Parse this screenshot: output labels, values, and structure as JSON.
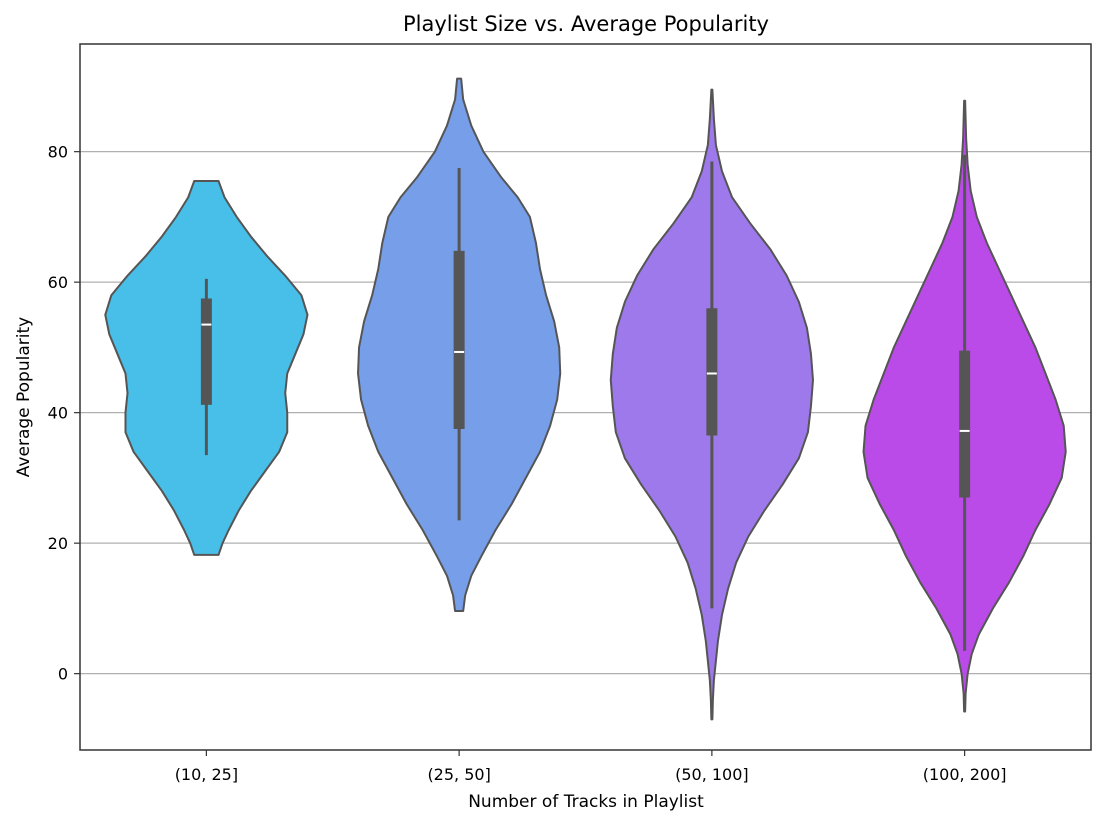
{
  "chart_data": {
    "type": "violin",
    "title": "Playlist Size vs. Average Popularity",
    "xlabel": "Number of Tracks in Playlist",
    "ylabel": "Average Popularity",
    "ylim": [
      -11.7,
      96.5
    ],
    "yticks": [
      0,
      20,
      40,
      60,
      80
    ],
    "grid": "y",
    "categories": [
      "(10, 25]",
      "(25, 50]",
      "(50, 100]",
      "(100, 200]"
    ],
    "colors": [
      "#48bfe8",
      "#779ee9",
      "#9e79eb",
      "#bb4be8"
    ],
    "outline_color": "#555555",
    "grid_color": "#b0b0b0",
    "violins": [
      {
        "category": "(10, 25]",
        "extent": [
          18.2,
          75.5
        ],
        "profile": [
          [
            18.2,
            0.12
          ],
          [
            20,
            0.16
          ],
          [
            22,
            0.22
          ],
          [
            25,
            0.32
          ],
          [
            28,
            0.44
          ],
          [
            31,
            0.58
          ],
          [
            34,
            0.72
          ],
          [
            37,
            0.8
          ],
          [
            40,
            0.8
          ],
          [
            43,
            0.78
          ],
          [
            46,
            0.8
          ],
          [
            49,
            0.88
          ],
          [
            52,
            0.96
          ],
          [
            55,
            1.0
          ],
          [
            58,
            0.94
          ],
          [
            61,
            0.78
          ],
          [
            64,
            0.6
          ],
          [
            67,
            0.44
          ],
          [
            70,
            0.3
          ],
          [
            73,
            0.18
          ],
          [
            75.5,
            0.12
          ]
        ],
        "box": {
          "q1": 41.2,
          "median": 53.5,
          "q3": 57.5,
          "whisker_low": 33.5,
          "whisker_high": 60.5
        }
      },
      {
        "category": "(25, 50]",
        "extent": [
          9.6,
          91.2
        ],
        "profile": [
          [
            9.6,
            0.04
          ],
          [
            12,
            0.06
          ],
          [
            15,
            0.12
          ],
          [
            18,
            0.22
          ],
          [
            22,
            0.36
          ],
          [
            26,
            0.52
          ],
          [
            30,
            0.66
          ],
          [
            34,
            0.8
          ],
          [
            38,
            0.9
          ],
          [
            42,
            0.97
          ],
          [
            46,
            1.0
          ],
          [
            50,
            0.99
          ],
          [
            54,
            0.94
          ],
          [
            58,
            0.86
          ],
          [
            62,
            0.8
          ],
          [
            66,
            0.76
          ],
          [
            70,
            0.7
          ],
          [
            73,
            0.58
          ],
          [
            76,
            0.42
          ],
          [
            80,
            0.24
          ],
          [
            84,
            0.12
          ],
          [
            88,
            0.04
          ],
          [
            91.2,
            0.02
          ]
        ],
        "box": {
          "q1": 37.5,
          "median": 49.3,
          "q3": 64.8,
          "whisker_low": 23.5,
          "whisker_high": 77.5
        }
      },
      {
        "category": "(50, 100]",
        "extent": [
          -7,
          89.5
        ],
        "profile": [
          [
            -7,
            0.005
          ],
          [
            -4,
            0.01
          ],
          [
            -1,
            0.02
          ],
          [
            2,
            0.04
          ],
          [
            5,
            0.06
          ],
          [
            9,
            0.1
          ],
          [
            13,
            0.16
          ],
          [
            17,
            0.24
          ],
          [
            21,
            0.36
          ],
          [
            25,
            0.52
          ],
          [
            29,
            0.7
          ],
          [
            33,
            0.86
          ],
          [
            37,
            0.95
          ],
          [
            41,
            0.98
          ],
          [
            45,
            1.0
          ],
          [
            49,
            0.98
          ],
          [
            53,
            0.94
          ],
          [
            57,
            0.86
          ],
          [
            61,
            0.74
          ],
          [
            65,
            0.58
          ],
          [
            69,
            0.38
          ],
          [
            73,
            0.2
          ],
          [
            77,
            0.1
          ],
          [
            81,
            0.04
          ],
          [
            85,
            0.02
          ],
          [
            89.5,
            0.005
          ]
        ],
        "box": {
          "q1": 36.5,
          "median": 46.0,
          "q3": 56.0,
          "whisker_low": 10.0,
          "whisker_high": 78.5
        }
      },
      {
        "category": "(100, 200]",
        "extent": [
          -5.8,
          87.8
        ],
        "profile": [
          [
            -5.8,
            0.005
          ],
          [
            -3,
            0.01
          ],
          [
            0,
            0.03
          ],
          [
            3,
            0.07
          ],
          [
            6,
            0.14
          ],
          [
            10,
            0.28
          ],
          [
            14,
            0.44
          ],
          [
            18,
            0.58
          ],
          [
            22,
            0.7
          ],
          [
            26,
            0.84
          ],
          [
            30,
            0.96
          ],
          [
            34,
            1.0
          ],
          [
            38,
            0.98
          ],
          [
            42,
            0.9
          ],
          [
            46,
            0.8
          ],
          [
            50,
            0.7
          ],
          [
            54,
            0.58
          ],
          [
            58,
            0.46
          ],
          [
            62,
            0.34
          ],
          [
            66,
            0.22
          ],
          [
            70,
            0.12
          ],
          [
            74,
            0.06
          ],
          [
            78,
            0.03
          ],
          [
            82,
            0.015
          ],
          [
            87.8,
            0.005
          ]
        ],
        "box": {
          "q1": 27.0,
          "median": 37.2,
          "q3": 49.5,
          "whisker_low": 3.5,
          "whisker_high": 79.5
        }
      }
    ]
  }
}
